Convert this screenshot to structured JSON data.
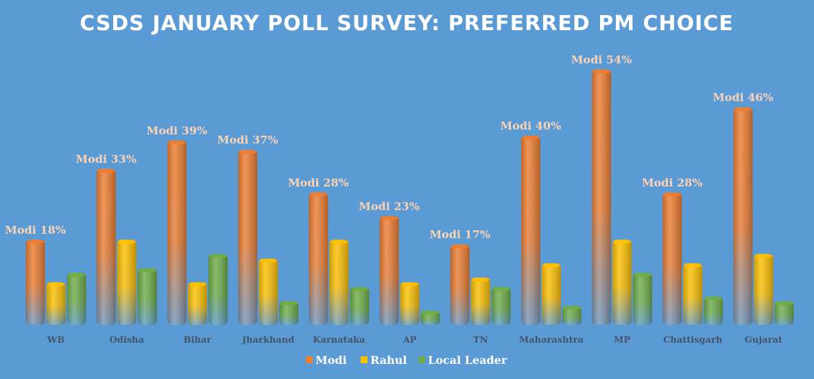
{
  "chart_data": {
    "type": "bar",
    "title": "CSDS JANUARY POLL SURVEY: PREFERRED PM CHOICE",
    "xlabel": "",
    "ylabel": "",
    "ylim": [
      0,
      60
    ],
    "grid": false,
    "legend_position": "bottom",
    "categories": [
      "WB",
      "Odisha",
      "Bihar",
      "Jharkhand",
      "Karnataka",
      "AP",
      "TN",
      "Maharashtra",
      "MP",
      "Chattisgarh",
      "Gujarat"
    ],
    "series": [
      {
        "name": "Modi",
        "color": "#ed7d31",
        "values": [
          18,
          33,
          39,
          37,
          28,
          23,
          17,
          40,
          54,
          28,
          46
        ]
      },
      {
        "name": "Rahul",
        "color": "#ffc000",
        "values": [
          9,
          18,
          9,
          14,
          18,
          9,
          10,
          13,
          18,
          13,
          15
        ]
      },
      {
        "name": "Local Leader",
        "color": "#70ad47",
        "values": [
          11,
          12,
          15,
          5,
          8,
          3,
          8,
          4,
          11,
          6,
          5
        ]
      }
    ],
    "data_labels": [
      "Modi 18%",
      "Modi 33%",
      "Modi 39%",
      "Modi 37%",
      "Modi 28%",
      "Modi 23%",
      "Modi 17%",
      "Modi 40%",
      "Modi 54%",
      "Modi 28%",
      "Modi 46%"
    ]
  }
}
